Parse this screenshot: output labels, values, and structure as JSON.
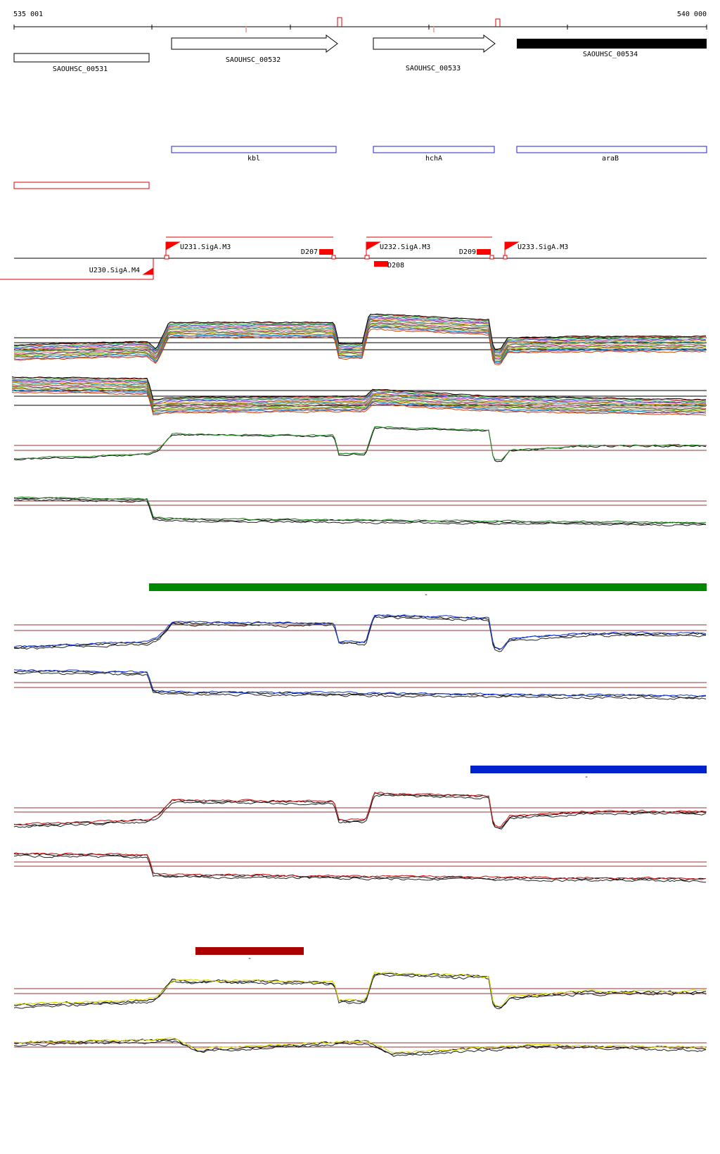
{
  "ruler": {
    "start_label": "535 001",
    "end_label": "540 000"
  },
  "genes": [
    {
      "label": "SAOUHSC_00531",
      "strand": "-",
      "style": "open"
    },
    {
      "label": "SAOUHSC_00532",
      "strand": "+",
      "style": "arrow"
    },
    {
      "label": "SAOUHSC_00533",
      "strand": "+",
      "style": "arrow"
    },
    {
      "label": "SAOUHSC_00534",
      "strand": "+",
      "style": "filled"
    }
  ],
  "gene_names": [
    "kbl",
    "hchA",
    "araB"
  ],
  "promoters": [
    "U231.SigA.M3",
    "U232.SigA.M3",
    "U233.SigA.M3",
    "U230.SigA.M4"
  ],
  "terminators": [
    "D207",
    "D208",
    "D209"
  ],
  "bar_labels": [
    "-",
    "-",
    "-"
  ],
  "colors": {
    "gene_outline": "#000000",
    "gene_filled": "#000000",
    "name_box": "#2222cc",
    "red_box": "#e00000",
    "promoter": "#ff0000",
    "bar_green": "#008800",
    "bar_blue": "#0022cc",
    "bar_darkred": "#aa0000",
    "trace_green": "#2a8a2a",
    "trace_blue": "#2244dd",
    "trace_red": "#cc2222",
    "trace_yellow": "#d8d800",
    "guide": "#993333"
  }
}
